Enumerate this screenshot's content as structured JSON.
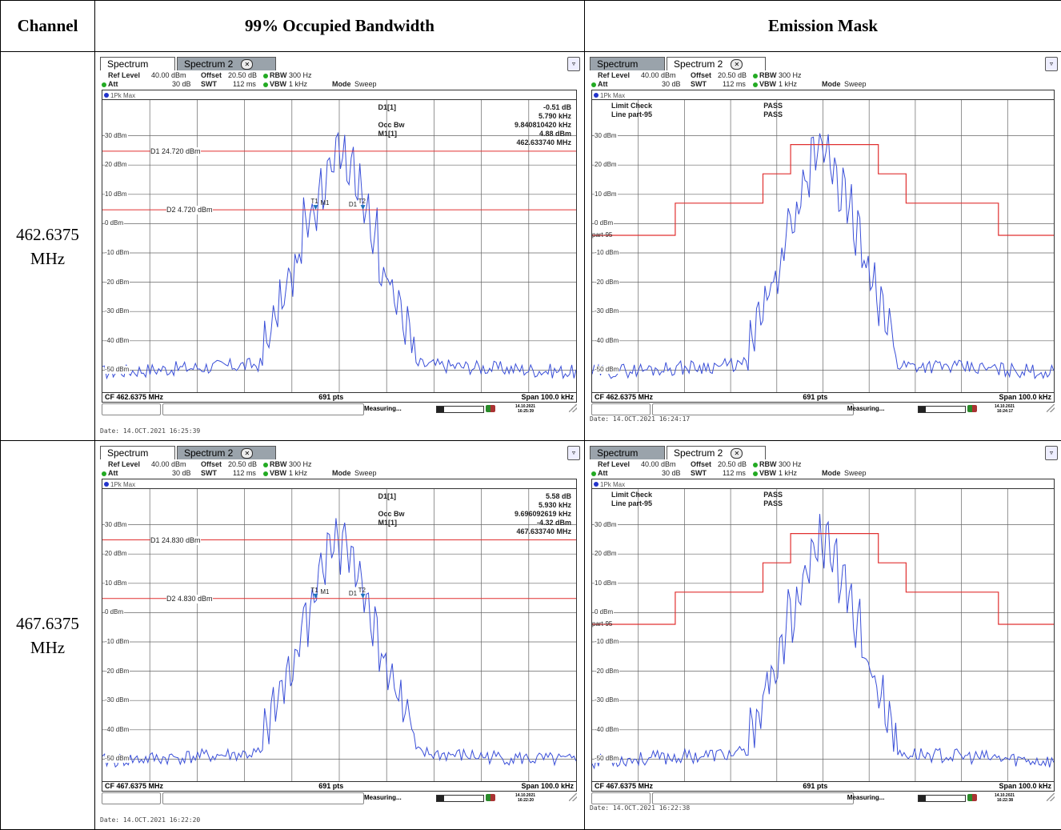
{
  "table": {
    "headers": [
      "Channel",
      "99% Occupied Bandwidth",
      "Emission Mask"
    ],
    "rows": [
      {
        "channel_line1": "462.6375",
        "channel_line2": "MHz",
        "obw": {
          "tab1": "Spectrum",
          "tab2": "Spectrum 2",
          "ref_level_label": "Ref Level",
          "ref_level_value": "40.00 dBm",
          "offset_label": "Offset",
          "offset_value": "20.50 dB",
          "rbw_label": "RBW",
          "rbw_value": "300 Hz",
          "att_label": "Att",
          "att_value": "30 dB",
          "swt_label": "SWT",
          "swt_value": "112 ms",
          "vbw_label": "VBW",
          "vbw_value": "1 kHz",
          "mode_label": "Mode",
          "mode_value": "Sweep",
          "trace": "1Pk Max",
          "y_labels": [
            "30 dBm",
            "20 dBm",
            "10 dBm",
            "0 dBm",
            "-10 dBm",
            "-20 dBm",
            "-30 dBm",
            "-40 dBm",
            "-50 dBm"
          ],
          "d1_line": "D1 24.720 dBm",
          "d2_line": "D2 4.720 dBm",
          "marker_d1_label": "D1[1]",
          "marker_d1_value1": "-0.51 dB",
          "marker_d1_value2": "5.790 kHz",
          "occ_label": "Occ Bw",
          "occ_value": "9.840810420 kHz",
          "marker_m1_label": "M1[1]",
          "marker_m1_value1": "4.88 dBm",
          "marker_m1_value2": "462.633740 MHz",
          "t1": "T1",
          "t2": "T2",
          "m1": "M1",
          "d1m": "D1",
          "cf": "CF 462.6375 MHz",
          "pts": "691 pts",
          "span": "Span 100.0 kHz",
          "status": "Measuring...",
          "clock1": "14.10.2021",
          "clock2": "16:25:39",
          "date": "Date: 14.OCT.2021  16:25:39"
        },
        "mask": {
          "tab1": "Spectrum",
          "tab2": "Spectrum 2",
          "ref_level_label": "Ref Level",
          "ref_level_value": "40.00 dBm",
          "offset_label": "Offset",
          "offset_value": "20.50 dB",
          "rbw_label": "RBW",
          "rbw_value": "300 Hz",
          "att_label": "Att",
          "att_value": "30 dB",
          "swt_label": "SWT",
          "swt_value": "112 ms",
          "vbw_label": "VBW",
          "vbw_value": "1 kHz",
          "mode_label": "Mode",
          "mode_value": "Sweep",
          "trace": "1Pk Max",
          "limit_check": "Limit Check",
          "line_part": "Line part-95",
          "pass1": "PASS",
          "pass2": "PASS",
          "mask_label": "part-95",
          "y_labels": [
            "30 dBm",
            "20 dBm",
            "10 dBm",
            "0 dBm",
            "-10 dBm",
            "-20 dBm",
            "-30 dBm",
            "-40 dBm",
            "-50 dBm"
          ],
          "cf": "CF 462.6375 MHz",
          "pts": "691 pts",
          "span": "Span 100.0 kHz",
          "status": "Measuring...",
          "clock1": "14.10.2021",
          "clock2": "16:24:17",
          "date": "Date: 14.OCT.2021  16:24:17"
        }
      },
      {
        "channel_line1": "467.6375",
        "channel_line2": "MHz",
        "obw": {
          "tab1": "Spectrum",
          "tab2": "Spectrum 2",
          "ref_level_label": "Ref Level",
          "ref_level_value": "40.00 dBm",
          "offset_label": "Offset",
          "offset_value": "20.50 dB",
          "rbw_label": "RBW",
          "rbw_value": "300 Hz",
          "att_label": "Att",
          "att_value": "30 dB",
          "swt_label": "SWT",
          "swt_value": "112 ms",
          "vbw_label": "VBW",
          "vbw_value": "1 kHz",
          "mode_label": "Mode",
          "mode_value": "Sweep",
          "trace": "1Pk Max",
          "y_labels": [
            "30 dBm",
            "20 dBm",
            "10 dBm",
            "0 dBm",
            "-10 dBm",
            "-20 dBm",
            "-30 dBm",
            "-40 dBm",
            "-50 dBm"
          ],
          "d1_line": "D1 24.830 dBm",
          "d2_line": "D2 4.830 dBm",
          "marker_d1_label": "D1[1]",
          "marker_d1_value1": "5.58 dB",
          "marker_d1_value2": "5.930 kHz",
          "occ_label": "Occ Bw",
          "occ_value": "9.696092619 kHz",
          "marker_m1_label": "M1[1]",
          "marker_m1_value1": "-4.32 dBm",
          "marker_m1_value2": "467.633740 MHz",
          "t1": "T1",
          "t2": "T2",
          "m1": "M1",
          "d1m": "D1",
          "cf": "CF 467.6375 MHz",
          "pts": "691 pts",
          "span": "Span 100.0 kHz",
          "status": "Measuring...",
          "clock1": "14.10.2021",
          "clock2": "16:22:20",
          "date": "Date: 14.OCT.2021  16:22:20"
        },
        "mask": {
          "tab1": "Spectrum",
          "tab2": "Spectrum 2",
          "ref_level_label": "Ref Level",
          "ref_level_value": "40.00 dBm",
          "offset_label": "Offset",
          "offset_value": "20.50 dB",
          "rbw_label": "RBW",
          "rbw_value": "300 Hz",
          "att_label": "Att",
          "att_value": "30 dB",
          "swt_label": "SWT",
          "swt_value": "112 ms",
          "vbw_label": "VBW",
          "vbw_value": "1 kHz",
          "mode_label": "Mode",
          "mode_value": "Sweep",
          "trace": "1Pk Max",
          "limit_check": "Limit Check",
          "line_part": "Line part-95",
          "pass1": "PASS",
          "pass2": "PASS",
          "mask_label": "part-95",
          "y_labels": [
            "30 dBm",
            "20 dBm",
            "10 dBm",
            "0 dBm",
            "-10 dBm",
            "-20 dBm",
            "-30 dBm",
            "-40 dBm",
            "-50 dBm"
          ],
          "cf": "CF 467.6375 MHz",
          "pts": "691 pts",
          "span": "Span 100.0 kHz",
          "status": "Measuring...",
          "clock1": "14.10.2021",
          "clock2": "16:22:38",
          "date": "Date: 14.OCT.2021  16:22:38"
        }
      }
    ]
  },
  "colors": {
    "trace": "#3a4fd8",
    "limit": "#e03030",
    "marker": "#1e73be",
    "pass": "#18c818"
  }
}
